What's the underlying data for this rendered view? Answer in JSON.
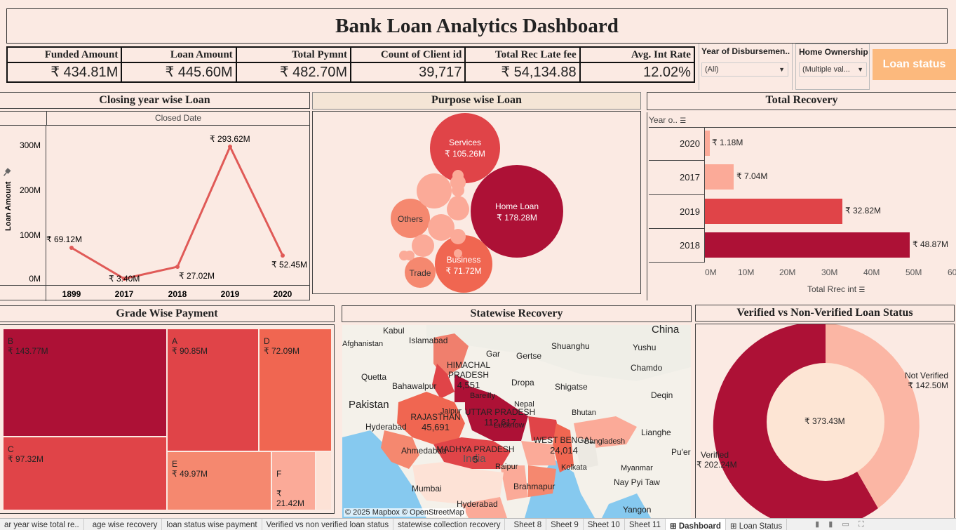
{
  "title": "Bank Loan Analytics Dashboard",
  "kpis": [
    {
      "label": "Funded Amount",
      "value": "₹ 434.81M"
    },
    {
      "label": "Loan Amount",
      "value": "₹ 445.60M"
    },
    {
      "label": "Total Pymnt",
      "value": "₹ 482.70M"
    },
    {
      "label": "Count of Client id",
      "value": "39,717"
    },
    {
      "label": "Total Rec Late fee",
      "value": "₹ 54,134.88"
    },
    {
      "label": "Avg. Int Rate",
      "value": "12.02%"
    }
  ],
  "filters": {
    "year": {
      "title": "Year of Disbursemen..",
      "value": "(All)"
    },
    "home": {
      "title": "Home Ownership",
      "value": "(Multiple val..."
    },
    "loan_status_button": "Loan status"
  },
  "closing_year": {
    "title": "Closing year wise Loan",
    "column_header": "Closed Date",
    "y_axis_label": "Loan Amount",
    "y_ticks": [
      "300M",
      "200M",
      "100M",
      "0M"
    ],
    "x_ticks": [
      "1899",
      "2017",
      "2018",
      "2019",
      "2020"
    ],
    "point_labels": [
      "₹ 69.12M",
      "₹ 3.40M",
      "₹ 27.02M",
      "₹ 293.62M",
      "₹ 52.45M"
    ]
  },
  "purpose": {
    "title": "Purpose wise Loan",
    "bubbles": [
      {
        "name": "Services",
        "value": "₹ 105.26M"
      },
      {
        "name": "Home Loan",
        "value": "₹ 178.28M"
      },
      {
        "name": "Business",
        "value": "₹ 71.72M"
      },
      {
        "name": "Others",
        "value": ""
      },
      {
        "name": "Trade",
        "value": ""
      }
    ]
  },
  "total_recovery": {
    "title": "Total Recovery",
    "row_header": "Year o..",
    "x_axis_label": "Total Rrec int",
    "x_ticks": [
      "0M",
      "10M",
      "20M",
      "30M",
      "40M",
      "50M",
      "60M"
    ],
    "rows": [
      {
        "year": "2020",
        "label": "₹ 1.18M"
      },
      {
        "year": "2017",
        "label": "₹ 7.04M"
      },
      {
        "year": "2019",
        "label": "₹ 32.82M"
      },
      {
        "year": "2018",
        "label": "₹ 48.87M"
      }
    ]
  },
  "grade": {
    "title": "Grade Wise Payment",
    "cells": [
      {
        "grade": "B",
        "value": "₹ 143.77M"
      },
      {
        "grade": "A",
        "value": "₹ 90.85M"
      },
      {
        "grade": "D",
        "value": "₹ 72.09M"
      },
      {
        "grade": "C",
        "value": "₹ 97.32M"
      },
      {
        "grade": "E",
        "value": "₹ 49.97M"
      },
      {
        "grade": "F",
        "value": "₹\n21.42M"
      }
    ]
  },
  "statewise": {
    "title": "Statewise Recovery",
    "attribution": "© 2025 Mapbox © OpenStreetMap",
    "states": [
      {
        "name": "HIMACHAL PRADESH",
        "value": "4,551"
      },
      {
        "name": "UTTAR PRADESH",
        "value": "112,617"
      },
      {
        "name": "RAJASTHAN",
        "value": "45,691"
      },
      {
        "name": "WEST BENGAL",
        "value": "24,014"
      },
      {
        "name": "MADHYA PRADESH",
        "value": "5"
      }
    ],
    "places": [
      "Kabul",
      "Islamabad",
      "Afghanistan",
      "Quetta",
      "Bahawalpur",
      "Pakistan",
      "Hyderabad",
      "Ahmedabad",
      "Mumbai",
      "Hyderabad",
      "Gar",
      "Gertse",
      "Shuanghu",
      "Yushu",
      "Chamdo",
      "China",
      "Dropa",
      "Shigatse",
      "Nepal",
      "Bhutan",
      "Deqin",
      "Lianghe",
      "Pu'er",
      "Myanmar",
      "Nay Pyi Taw",
      "Yangon",
      "Raipur",
      "Brahmapur",
      "Kolkata",
      "Bangladesh",
      "India",
      "Bareilly",
      "Jaipur",
      "Lucknow"
    ]
  },
  "verified": {
    "title": "Verified vs Non-Verified Loan Status",
    "center": "₹ 373.43M",
    "verified_label": "Verified",
    "verified_value": "₹ 202.24M",
    "not_verified_label": "Not Verified",
    "not_verified_value": "₹ 142.50M"
  },
  "tabs": [
    "ar year wise total re..",
    "age wise recovery",
    "loan status wise payment",
    "Verified vs non verified loan status",
    "statewise collection recovery",
    "Sheet 8",
    "Sheet 9",
    "Sheet 10",
    "Sheet 11",
    "Dashboard",
    "Loan Status"
  ],
  "colors": {
    "dark": "#ad1136",
    "red": "#e04448",
    "mid": "#f06651",
    "salmon": "#f5886f",
    "light": "#fbaa98",
    "pale": "#fde2d6",
    "line": "#e05a57",
    "bg": "#fbeae3"
  }
}
